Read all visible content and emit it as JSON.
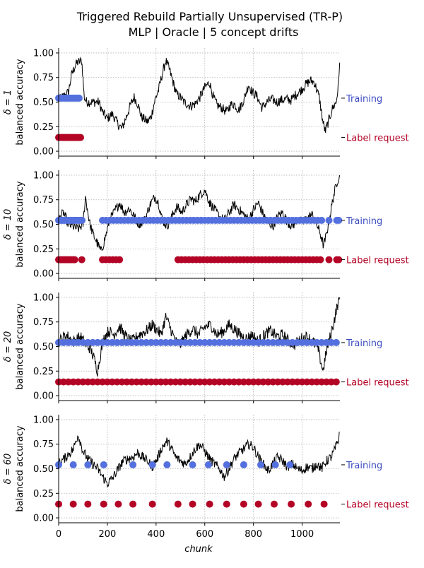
{
  "figure": {
    "title_line1": "Triggered Rebuild Partially Unsupervised (TR-P)",
    "title_line2": "MLP | Oracle | 5 concept drifts",
    "xlabel": "chunk",
    "ylabel": "balanced accuracy",
    "legend_training": "Training",
    "legend_label_request": "Label request"
  },
  "colors": {
    "accuracy_line": "#000000",
    "training": "#5470DE",
    "label_request": "#B40426",
    "training_text": "#3B4CC0",
    "grid": "#b0b0b0"
  },
  "chart_data": [
    {
      "type": "line",
      "panel_label": "δ = 1",
      "ylabel": "balanced accuracy",
      "xlim": [
        0,
        1155
      ],
      "ylim": [
        -0.05,
        1.05
      ],
      "xticks": [
        0,
        200,
        400,
        600,
        800,
        1000
      ],
      "yticks": [
        "0.00",
        "0.25",
        "0.50",
        "0.75",
        "1.00"
      ],
      "grid": true,
      "accuracy_profile": [
        [
          0,
          0.52
        ],
        [
          40,
          0.6
        ],
        [
          55,
          0.8
        ],
        [
          75,
          0.9
        ],
        [
          95,
          0.92
        ],
        [
          105,
          0.55
        ],
        [
          115,
          0.5
        ],
        [
          150,
          0.5
        ],
        [
          165,
          0.5
        ],
        [
          180,
          0.4
        ],
        [
          200,
          0.33
        ],
        [
          220,
          0.38
        ],
        [
          245,
          0.27
        ],
        [
          260,
          0.23
        ],
        [
          275,
          0.33
        ],
        [
          295,
          0.47
        ],
        [
          310,
          0.55
        ],
        [
          325,
          0.48
        ],
        [
          340,
          0.35
        ],
        [
          365,
          0.3
        ],
        [
          380,
          0.35
        ],
        [
          395,
          0.52
        ],
        [
          410,
          0.62
        ],
        [
          425,
          0.78
        ],
        [
          440,
          0.92
        ],
        [
          455,
          0.83
        ],
        [
          470,
          0.7
        ],
        [
          485,
          0.58
        ],
        [
          500,
          0.55
        ],
        [
          515,
          0.5
        ],
        [
          540,
          0.46
        ],
        [
          560,
          0.48
        ],
        [
          580,
          0.55
        ],
        [
          600,
          0.65
        ],
        [
          620,
          0.7
        ],
        [
          635,
          0.55
        ],
        [
          650,
          0.47
        ],
        [
          670,
          0.44
        ],
        [
          690,
          0.4
        ],
        [
          705,
          0.47
        ],
        [
          720,
          0.48
        ],
        [
          740,
          0.42
        ],
        [
          760,
          0.52
        ],
        [
          780,
          0.68
        ],
        [
          795,
          0.6
        ],
        [
          815,
          0.56
        ],
        [
          835,
          0.44
        ],
        [
          855,
          0.5
        ],
        [
          875,
          0.53
        ],
        [
          895,
          0.5
        ],
        [
          915,
          0.52
        ],
        [
          935,
          0.53
        ],
        [
          955,
          0.52
        ],
        [
          975,
          0.58
        ],
        [
          995,
          0.62
        ],
        [
          1015,
          0.68
        ],
        [
          1035,
          0.72
        ],
        [
          1050,
          0.7
        ],
        [
          1070,
          0.55
        ],
        [
          1085,
          0.3
        ],
        [
          1095,
          0.2
        ],
        [
          1110,
          0.32
        ],
        [
          1125,
          0.44
        ],
        [
          1140,
          0.5
        ],
        [
          1150,
          0.7
        ],
        [
          1155,
          1.0
        ]
      ],
      "accuracy_noise": 0.05,
      "training_y": 0.54,
      "label_request_y": 0.14,
      "training_chunks": [],
      "training_ranges": [
        [
          0,
          90,
          7
        ]
      ],
      "label_request_chunks": [],
      "label_request_ranges": [
        [
          0,
          90,
          5
        ]
      ]
    },
    {
      "type": "line",
      "panel_label": "δ = 10",
      "ylabel": "balanced accuracy",
      "xlim": [
        0,
        1155
      ],
      "ylim": [
        -0.05,
        1.05
      ],
      "xticks": [
        0,
        200,
        400,
        600,
        800,
        1000
      ],
      "yticks": [
        "0.00",
        "0.25",
        "0.50",
        "0.75",
        "1.00"
      ],
      "grid": true,
      "accuracy_profile": [
        [
          0,
          0.55
        ],
        [
          20,
          0.62
        ],
        [
          40,
          0.5
        ],
        [
          60,
          0.48
        ],
        [
          80,
          0.45
        ],
        [
          100,
          0.5
        ],
        [
          110,
          0.78
        ],
        [
          120,
          0.62
        ],
        [
          130,
          0.48
        ],
        [
          145,
          0.38
        ],
        [
          160,
          0.3
        ],
        [
          175,
          0.22
        ],
        [
          195,
          0.4
        ],
        [
          210,
          0.55
        ],
        [
          230,
          0.63
        ],
        [
          250,
          0.72
        ],
        [
          270,
          0.62
        ],
        [
          290,
          0.66
        ],
        [
          310,
          0.58
        ],
        [
          330,
          0.5
        ],
        [
          355,
          0.55
        ],
        [
          375,
          0.7
        ],
        [
          395,
          0.78
        ],
        [
          410,
          0.72
        ],
        [
          425,
          0.55
        ],
        [
          445,
          0.48
        ],
        [
          465,
          0.58
        ],
        [
          485,
          0.68
        ],
        [
          505,
          0.62
        ],
        [
          525,
          0.7
        ],
        [
          545,
          0.76
        ],
        [
          560,
          0.73
        ],
        [
          580,
          0.8
        ],
        [
          600,
          0.85
        ],
        [
          620,
          0.72
        ],
        [
          640,
          0.65
        ],
        [
          660,
          0.58
        ],
        [
          680,
          0.54
        ],
        [
          700,
          0.62
        ],
        [
          720,
          0.7
        ],
        [
          740,
          0.65
        ],
        [
          760,
          0.6
        ],
        [
          780,
          0.55
        ],
        [
          800,
          0.65
        ],
        [
          820,
          0.72
        ],
        [
          840,
          0.6
        ],
        [
          860,
          0.52
        ],
        [
          880,
          0.48
        ],
        [
          900,
          0.58
        ],
        [
          920,
          0.62
        ],
        [
          940,
          0.52
        ],
        [
          960,
          0.48
        ],
        [
          980,
          0.55
        ],
        [
          1000,
          0.52
        ],
        [
          1020,
          0.56
        ],
        [
          1040,
          0.6
        ],
        [
          1060,
          0.5
        ],
        [
          1075,
          0.4
        ],
        [
          1088,
          0.28
        ],
        [
          1100,
          0.4
        ],
        [
          1115,
          0.6
        ],
        [
          1130,
          0.8
        ],
        [
          1145,
          0.95
        ],
        [
          1155,
          1.0
        ]
      ],
      "accuracy_noise": 0.05,
      "training_y": 0.54,
      "label_request_y": 0.14,
      "training_chunks": [
        1110,
        1142,
        1150
      ],
      "training_ranges": [
        [
          0,
          100,
          6
        ],
        [
          180,
          1080,
          15
        ]
      ],
      "label_request_chunks": [
        95,
        1110,
        1142,
        1150
      ],
      "label_request_ranges": [
        [
          0,
          70,
          6
        ],
        [
          180,
          260,
          14
        ],
        [
          490,
          1080,
          15
        ]
      ]
    },
    {
      "type": "line",
      "panel_label": "δ = 20",
      "ylabel": "balanced accuracy",
      "xlim": [
        0,
        1155
      ],
      "ylim": [
        -0.05,
        1.05
      ],
      "xticks": [
        0,
        200,
        400,
        600,
        800,
        1000
      ],
      "yticks": [
        "0.00",
        "0.25",
        "0.50",
        "0.75",
        "1.00"
      ],
      "grid": true,
      "accuracy_profile": [
        [
          0,
          0.55
        ],
        [
          30,
          0.62
        ],
        [
          60,
          0.55
        ],
        [
          90,
          0.6
        ],
        [
          110,
          0.52
        ],
        [
          130,
          0.48
        ],
        [
          145,
          0.38
        ],
        [
          160,
          0.25
        ],
        [
          170,
          0.4
        ],
        [
          185,
          0.58
        ],
        [
          205,
          0.66
        ],
        [
          225,
          0.62
        ],
        [
          250,
          0.7
        ],
        [
          275,
          0.6
        ],
        [
          300,
          0.55
        ],
        [
          330,
          0.62
        ],
        [
          360,
          0.66
        ],
        [
          385,
          0.72
        ],
        [
          400,
          0.68
        ],
        [
          420,
          0.62
        ],
        [
          440,
          0.8
        ],
        [
          460,
          0.68
        ],
        [
          480,
          0.55
        ],
        [
          500,
          0.52
        ],
        [
          525,
          0.62
        ],
        [
          550,
          0.68
        ],
        [
          575,
          0.62
        ],
        [
          600,
          0.7
        ],
        [
          625,
          0.72
        ],
        [
          650,
          0.62
        ],
        [
          675,
          0.65
        ],
        [
          700,
          0.72
        ],
        [
          720,
          0.68
        ],
        [
          745,
          0.62
        ],
        [
          770,
          0.58
        ],
        [
          795,
          0.62
        ],
        [
          820,
          0.55
        ],
        [
          845,
          0.62
        ],
        [
          870,
          0.66
        ],
        [
          895,
          0.6
        ],
        [
          920,
          0.62
        ],
        [
          945,
          0.55
        ],
        [
          970,
          0.52
        ],
        [
          995,
          0.58
        ],
        [
          1020,
          0.6
        ],
        [
          1045,
          0.55
        ],
        [
          1065,
          0.48
        ],
        [
          1085,
          0.25
        ],
        [
          1100,
          0.45
        ],
        [
          1115,
          0.6
        ],
        [
          1130,
          0.75
        ],
        [
          1145,
          0.92
        ],
        [
          1155,
          1.0
        ]
      ],
      "accuracy_noise": 0.06,
      "training_y": 0.54,
      "label_request_y": 0.14,
      "training_chunks": [],
      "training_ranges": [
        [
          0,
          1150,
          20
        ]
      ],
      "label_request_chunks": [],
      "label_request_ranges": [
        [
          0,
          1150,
          20
        ]
      ]
    },
    {
      "type": "line",
      "panel_label": "δ = 60",
      "ylabel": "balanced accuracy",
      "xlim": [
        0,
        1155
      ],
      "ylim": [
        -0.05,
        1.05
      ],
      "xticks": [
        0,
        200,
        400,
        600,
        800,
        1000
      ],
      "yticks": [
        "0.00",
        "0.25",
        "0.50",
        "0.75",
        "1.00"
      ],
      "grid": true,
      "accuracy_profile": [
        [
          0,
          0.55
        ],
        [
          30,
          0.62
        ],
        [
          60,
          0.7
        ],
        [
          80,
          0.85
        ],
        [
          100,
          0.68
        ],
        [
          120,
          0.6
        ],
        [
          140,
          0.55
        ],
        [
          160,
          0.5
        ],
        [
          180,
          0.42
        ],
        [
          200,
          0.35
        ],
        [
          220,
          0.4
        ],
        [
          245,
          0.5
        ],
        [
          265,
          0.58
        ],
        [
          285,
          0.6
        ],
        [
          305,
          0.62
        ],
        [
          325,
          0.66
        ],
        [
          345,
          0.62
        ],
        [
          365,
          0.58
        ],
        [
          385,
          0.52
        ],
        [
          405,
          0.6
        ],
        [
          425,
          0.72
        ],
        [
          445,
          0.78
        ],
        [
          460,
          0.72
        ],
        [
          480,
          0.62
        ],
        [
          500,
          0.58
        ],
        [
          520,
          0.55
        ],
        [
          540,
          0.62
        ],
        [
          560,
          0.7
        ],
        [
          580,
          0.75
        ],
        [
          600,
          0.68
        ],
        [
          620,
          0.6
        ],
        [
          640,
          0.55
        ],
        [
          660,
          0.5
        ],
        [
          680,
          0.42
        ],
        [
          700,
          0.5
        ],
        [
          720,
          0.6
        ],
        [
          740,
          0.66
        ],
        [
          760,
          0.7
        ],
        [
          780,
          0.75
        ],
        [
          800,
          0.72
        ],
        [
          820,
          0.62
        ],
        [
          840,
          0.55
        ],
        [
          860,
          0.48
        ],
        [
          880,
          0.55
        ],
        [
          900,
          0.62
        ],
        [
          920,
          0.58
        ],
        [
          940,
          0.52
        ],
        [
          960,
          0.55
        ],
        [
          980,
          0.5
        ],
        [
          1000,
          0.48
        ],
        [
          1020,
          0.52
        ],
        [
          1040,
          0.5
        ],
        [
          1060,
          0.55
        ],
        [
          1080,
          0.5
        ],
        [
          1100,
          0.58
        ],
        [
          1120,
          0.62
        ],
        [
          1135,
          0.7
        ],
        [
          1150,
          0.8
        ],
        [
          1155,
          0.95
        ]
      ],
      "accuracy_noise": 0.05,
      "training_y": 0.54,
      "label_request_y": 0.14,
      "training_chunks": [
        0,
        60,
        120,
        185,
        305,
        385,
        445,
        550,
        615,
        690,
        760,
        830,
        890,
        950
      ],
      "training_ranges": [],
      "label_request_chunks": [
        0,
        60,
        120,
        185,
        245,
        305,
        385,
        490,
        550,
        620,
        690,
        760,
        820,
        885,
        955,
        1025,
        1090
      ],
      "label_request_ranges": []
    }
  ]
}
